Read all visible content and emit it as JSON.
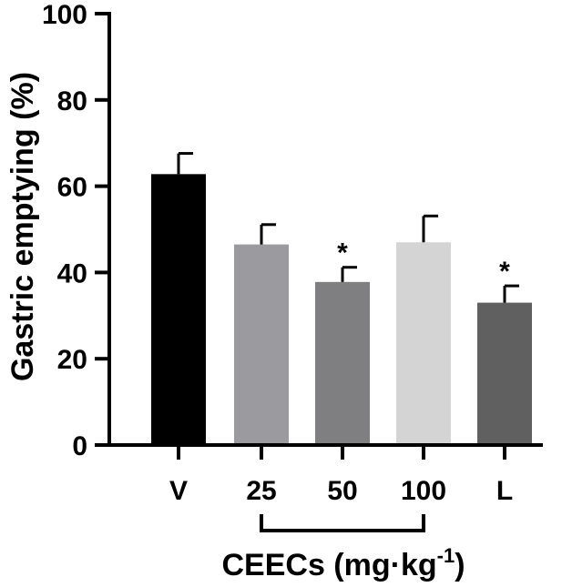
{
  "chart_data": {
    "type": "bar",
    "categories": [
      "V",
      "25",
      "50",
      "100",
      "L"
    ],
    "values": [
      62.8,
      46.5,
      37.8,
      47.0,
      33.0
    ],
    "errors": [
      4.8,
      4.6,
      3.4,
      6.1,
      3.9
    ],
    "significance": [
      "",
      "",
      "*",
      "",
      "*"
    ],
    "bar_colors": [
      "#000000",
      "#9b9b9f",
      "#7f7f81",
      "#d4d4d4",
      "#606060"
    ],
    "ylabel": "Gastric emptying (%)",
    "ylim": [
      0,
      100
    ],
    "yticks": [
      0,
      20,
      40,
      60,
      80,
      100
    ],
    "group_bracket": {
      "label_main": "CEECs (mg·kg",
      "label_sup": "-1",
      "label_close": ")",
      "spans": [
        "25",
        "100"
      ]
    },
    "grid": false,
    "legend": "none"
  }
}
